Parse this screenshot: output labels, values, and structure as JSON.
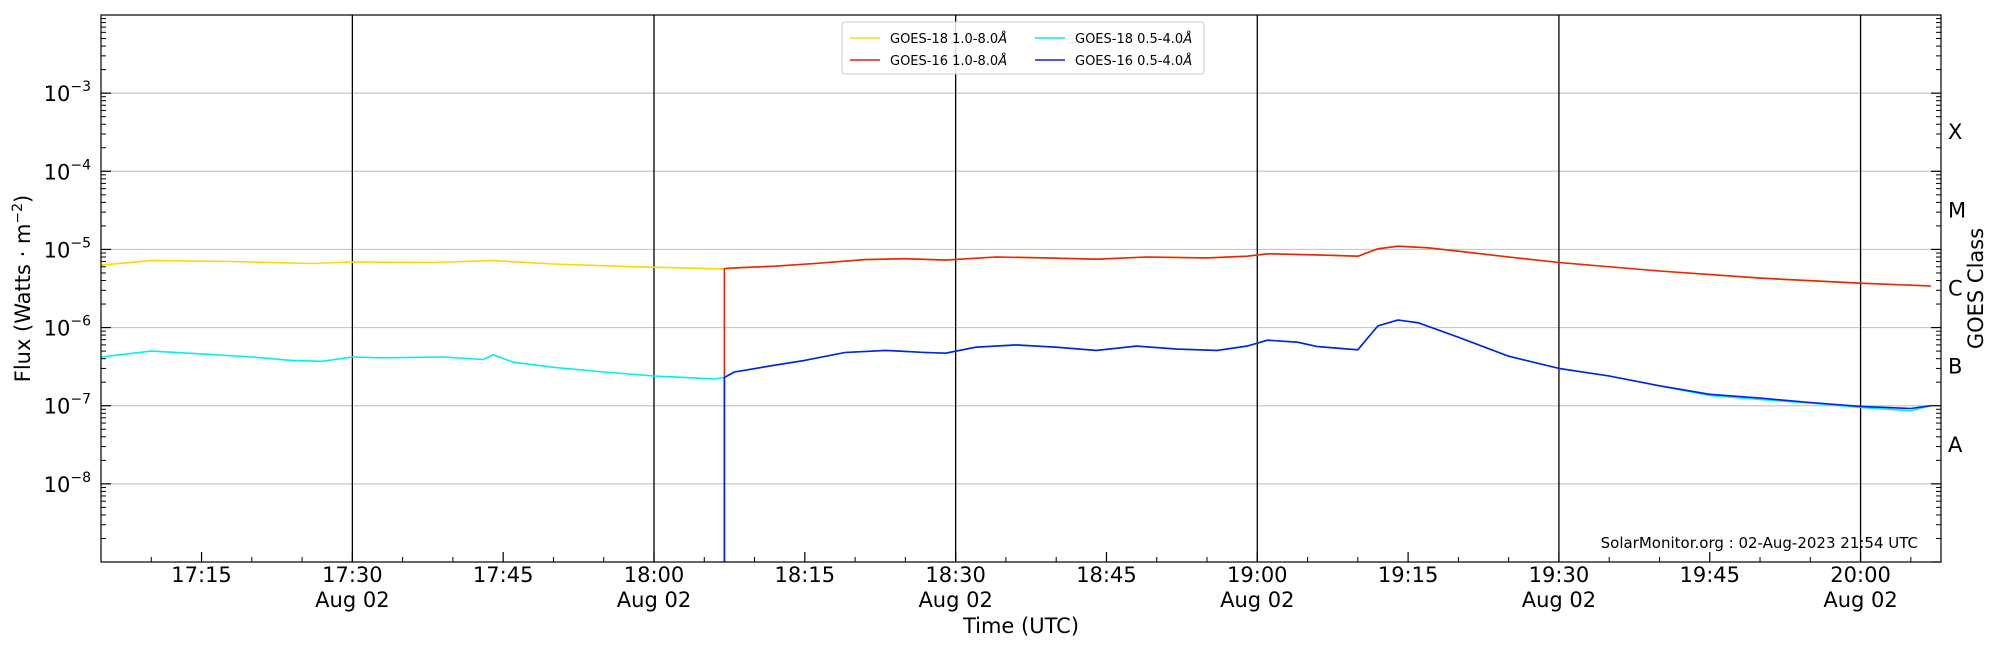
{
  "chart_data": {
    "type": "line",
    "xlabel": "Time (UTC)",
    "ylabel": "Flux (Watts · m",
    "ylabel_sup": "−2",
    "ylabel_close": ")",
    "right_label": "GOES Class",
    "y_scale": "log",
    "ylim": [
      1e-09,
      0.01
    ],
    "xlim": [
      "17:05",
      "20:08"
    ],
    "y_ticks": [
      {
        "value": 1e-08,
        "base": "10",
        "exp": "−8"
      },
      {
        "value": 1e-07,
        "base": "10",
        "exp": "−7"
      },
      {
        "value": 1e-06,
        "base": "10",
        "exp": "−6"
      },
      {
        "value": 1e-05,
        "base": "10",
        "exp": "−5"
      },
      {
        "value": 0.0001,
        "base": "10",
        "exp": "−4"
      },
      {
        "value": 0.001,
        "base": "10",
        "exp": "−3"
      }
    ],
    "x_ticks": [
      {
        "time": "17:15",
        "label": "17:15",
        "date": ""
      },
      {
        "time": "17:30",
        "label": "17:30",
        "date": "Aug 02"
      },
      {
        "time": "17:45",
        "label": "17:45",
        "date": ""
      },
      {
        "time": "18:00",
        "label": "18:00",
        "date": "Aug 02"
      },
      {
        "time": "18:15",
        "label": "18:15",
        "date": ""
      },
      {
        "time": "18:30",
        "label": "18:30",
        "date": "Aug 02"
      },
      {
        "time": "18:45",
        "label": "18:45",
        "date": ""
      },
      {
        "time": "19:00",
        "label": "19:00",
        "date": "Aug 02"
      },
      {
        "time": "19:15",
        "label": "19:15",
        "date": ""
      },
      {
        "time": "19:30",
        "label": "19:30",
        "date": "Aug 02"
      },
      {
        "time": "19:45",
        "label": "19:45",
        "date": ""
      },
      {
        "time": "20:00",
        "label": "20:00",
        "date": "Aug 02"
      }
    ],
    "vertical_lines": [
      "17:30",
      "18:00",
      "18:30",
      "19:00",
      "19:30",
      "20:00"
    ],
    "goes_classes": [
      {
        "label": "A",
        "flux": 3.16e-08
      },
      {
        "label": "B",
        "flux": 3.16e-07
      },
      {
        "label": "C",
        "flux": 3.16e-06
      },
      {
        "label": "M",
        "flux": 3.16e-05
      },
      {
        "label": "X",
        "flux": 0.000316
      }
    ],
    "grid": "horizontal at decades",
    "legend_position": "top-center",
    "legend_columns": 2,
    "footer": "SolarMonitor.org : 02-Aug-2023 21:54 UTC",
    "series": [
      {
        "name": "GOES-18 1.0-8.0",
        "color": "#ffd700",
        "points": [
          [
            "17:05",
            6.3e-06
          ],
          [
            "17:10",
            7.2e-06
          ],
          [
            "17:18",
            7e-06
          ],
          [
            "17:26",
            6.6e-06
          ],
          [
            "17:30",
            6.9e-06
          ],
          [
            "17:38",
            6.8e-06
          ],
          [
            "17:44",
            7.2e-06
          ],
          [
            "17:50",
            6.5e-06
          ],
          [
            "17:58",
            6e-06
          ],
          [
            "18:03",
            5.8e-06
          ],
          [
            "18:07",
            5.6e-06
          ],
          [
            "18:08",
            5.8e-06
          ],
          [
            "18:12",
            6.1e-06
          ],
          [
            "18:16",
            6.6e-06
          ],
          [
            "18:21",
            7.4e-06
          ],
          [
            "18:25",
            7.6e-06
          ],
          [
            "18:29",
            7.3e-06
          ],
          [
            "18:34",
            8e-06
          ],
          [
            "18:39",
            7.8e-06
          ],
          [
            "18:44",
            7.5e-06
          ],
          [
            "18:49",
            8e-06
          ],
          [
            "18:55",
            7.8e-06
          ],
          [
            "18:59",
            8.2e-06
          ],
          [
            "19:01",
            8.8e-06
          ],
          [
            "19:06",
            8.5e-06
          ],
          [
            "19:10",
            8.2e-06
          ],
          [
            "19:12",
            1.02e-05
          ],
          [
            "19:14",
            1.1e-05
          ],
          [
            "19:17",
            1.05e-05
          ],
          [
            "19:20",
            9.5e-06
          ],
          [
            "19:25",
            8e-06
          ],
          [
            "19:30",
            6.8e-06
          ],
          [
            "19:40",
            5.3e-06
          ],
          [
            "19:50",
            4.3e-06
          ],
          [
            "20:00",
            3.7e-06
          ],
          [
            "20:07",
            3.4e-06
          ]
        ]
      },
      {
        "name": "GOES-16 1.0-8.0",
        "color": "#e8240d",
        "points": [
          [
            "18:07",
            1e-09
          ],
          [
            "18:07",
            5.7e-06
          ],
          [
            "18:08",
            5.8e-06
          ],
          [
            "18:12",
            6.1e-06
          ],
          [
            "18:16",
            6.6e-06
          ],
          [
            "18:21",
            7.4e-06
          ],
          [
            "18:25",
            7.6e-06
          ],
          [
            "18:29",
            7.3e-06
          ],
          [
            "18:34",
            8e-06
          ],
          [
            "18:39",
            7.8e-06
          ],
          [
            "18:44",
            7.5e-06
          ],
          [
            "18:49",
            8e-06
          ],
          [
            "18:55",
            7.8e-06
          ],
          [
            "18:59",
            8.2e-06
          ],
          [
            "19:01",
            8.8e-06
          ],
          [
            "19:06",
            8.5e-06
          ],
          [
            "19:10",
            8.2e-06
          ],
          [
            "19:12",
            1.02e-05
          ],
          [
            "19:14",
            1.1e-05
          ],
          [
            "19:17",
            1.05e-05
          ],
          [
            "19:20",
            9.5e-06
          ],
          [
            "19:25",
            8e-06
          ],
          [
            "19:30",
            6.8e-06
          ],
          [
            "19:40",
            5.3e-06
          ],
          [
            "19:50",
            4.3e-06
          ],
          [
            "20:00",
            3.7e-06
          ],
          [
            "20:07",
            3.4e-06
          ]
        ]
      },
      {
        "name": "GOES-18 0.5-4.0",
        "color": "#00f0f0",
        "points": [
          [
            "17:05",
            4.2e-07
          ],
          [
            "17:10",
            5e-07
          ],
          [
            "17:15",
            4.6e-07
          ],
          [
            "17:20",
            4.2e-07
          ],
          [
            "17:24",
            3.8e-07
          ],
          [
            "17:27",
            3.7e-07
          ],
          [
            "17:30",
            4.2e-07
          ],
          [
            "17:33",
            4.1e-07
          ],
          [
            "17:39",
            4.2e-07
          ],
          [
            "17:43",
            3.9e-07
          ],
          [
            "17:44",
            4.5e-07
          ],
          [
            "17:46",
            3.6e-07
          ],
          [
            "17:50",
            3.1e-07
          ],
          [
            "17:55",
            2.7e-07
          ],
          [
            "18:00",
            2.4e-07
          ],
          [
            "18:03",
            2.3e-07
          ],
          [
            "18:06",
            2.2e-07
          ],
          [
            "18:07",
            2.3e-07
          ],
          [
            "18:08",
            2.7e-07
          ],
          [
            "18:12",
            3.3e-07
          ],
          [
            "18:15",
            3.8e-07
          ],
          [
            "18:19",
            4.8e-07
          ],
          [
            "18:23",
            5.1e-07
          ],
          [
            "18:27",
            4.8e-07
          ],
          [
            "18:29",
            4.7e-07
          ],
          [
            "18:32",
            5.6e-07
          ],
          [
            "18:36",
            6e-07
          ],
          [
            "18:40",
            5.6e-07
          ],
          [
            "18:44",
            5.1e-07
          ],
          [
            "18:48",
            5.8e-07
          ],
          [
            "18:52",
            5.3e-07
          ],
          [
            "18:56",
            5.1e-07
          ],
          [
            "18:59",
            5.8e-07
          ],
          [
            "19:01",
            6.9e-07
          ],
          [
            "19:04",
            6.5e-07
          ],
          [
            "19:06",
            5.7e-07
          ],
          [
            "19:10",
            5.2e-07
          ],
          [
            "19:12",
            1.05e-06
          ],
          [
            "19:14",
            1.25e-06
          ],
          [
            "19:16",
            1.15e-06
          ],
          [
            "19:20",
            7.5e-07
          ],
          [
            "19:25",
            4.3e-07
          ],
          [
            "19:30",
            3e-07
          ],
          [
            "19:35",
            2.4e-07
          ],
          [
            "19:40",
            1.8e-07
          ],
          [
            "19:45",
            1.35e-07
          ],
          [
            "19:50",
            1.2e-07
          ],
          [
            "19:55",
            1.08e-07
          ],
          [
            "20:00",
            9.5e-08
          ],
          [
            "20:05",
            8.6e-08
          ],
          [
            "20:07",
            1e-07
          ]
        ]
      },
      {
        "name": "GOES-16 0.5-4.0",
        "color": "#0a1ee6",
        "points": [
          [
            "18:07",
            1e-09
          ],
          [
            "18:07",
            2.3e-07
          ],
          [
            "18:08",
            2.7e-07
          ],
          [
            "18:12",
            3.3e-07
          ],
          [
            "18:15",
            3.8e-07
          ],
          [
            "18:19",
            4.8e-07
          ],
          [
            "18:23",
            5.1e-07
          ],
          [
            "18:27",
            4.8e-07
          ],
          [
            "18:29",
            4.7e-07
          ],
          [
            "18:32",
            5.6e-07
          ],
          [
            "18:36",
            6e-07
          ],
          [
            "18:40",
            5.6e-07
          ],
          [
            "18:44",
            5.1e-07
          ],
          [
            "18:48",
            5.8e-07
          ],
          [
            "18:52",
            5.3e-07
          ],
          [
            "18:56",
            5.1e-07
          ],
          [
            "18:59",
            5.8e-07
          ],
          [
            "19:01",
            6.9e-07
          ],
          [
            "19:04",
            6.5e-07
          ],
          [
            "19:06",
            5.7e-07
          ],
          [
            "19:10",
            5.2e-07
          ],
          [
            "19:12",
            1.05e-06
          ],
          [
            "19:14",
            1.25e-06
          ],
          [
            "19:16",
            1.15e-06
          ],
          [
            "19:20",
            7.5e-07
          ],
          [
            "19:25",
            4.3e-07
          ],
          [
            "19:30",
            3e-07
          ],
          [
            "19:35",
            2.4e-07
          ],
          [
            "19:40",
            1.8e-07
          ],
          [
            "19:45",
            1.4e-07
          ],
          [
            "19:50",
            1.25e-07
          ],
          [
            "19:55",
            1.1e-07
          ],
          [
            "20:00",
            9.8e-08
          ],
          [
            "20:05",
            9.2e-08
          ],
          [
            "20:07",
            1e-07
          ]
        ]
      }
    ]
  }
}
